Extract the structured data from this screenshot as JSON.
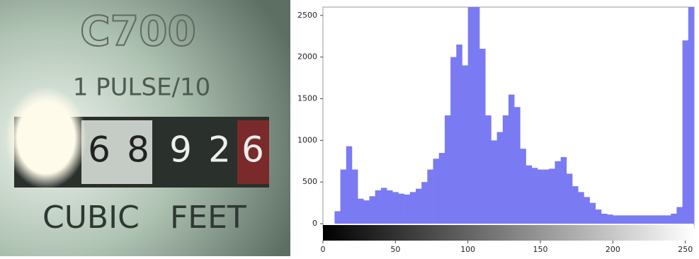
{
  "photo": {
    "model": "C700",
    "pulse": "1 PULSE/10",
    "digits": [
      "6",
      "8",
      "9",
      "2",
      "6"
    ],
    "unit_left": "CUBIC",
    "unit_right": "FEET"
  },
  "chart_data": {
    "type": "histogram",
    "color": "#7a7af2",
    "bins": [
      0,
      4,
      8,
      12,
      16,
      20,
      24,
      28,
      32,
      36,
      40,
      44,
      48,
      52,
      56,
      60,
      64,
      68,
      72,
      76,
      80,
      84,
      88,
      92,
      96,
      100,
      104,
      108,
      112,
      116,
      120,
      124,
      128,
      132,
      136,
      140,
      144,
      148,
      152,
      156,
      160,
      164,
      168,
      172,
      176,
      180,
      184,
      188,
      192,
      196,
      200,
      204,
      208,
      212,
      216,
      220,
      224,
      228,
      232,
      236,
      240,
      244,
      248,
      252,
      256
    ],
    "values": [
      0,
      0,
      150,
      650,
      930,
      650,
      300,
      280,
      330,
      400,
      430,
      400,
      380,
      360,
      350,
      380,
      420,
      500,
      650,
      780,
      850,
      1300,
      2000,
      2150,
      1900,
      2600,
      2600,
      2100,
      1300,
      1000,
      1100,
      1300,
      1550,
      1400,
      900,
      700,
      670,
      650,
      650,
      660,
      750,
      800,
      600,
      450,
      380,
      320,
      250,
      170,
      120,
      110,
      100,
      100,
      100,
      100,
      100,
      100,
      100,
      100,
      100,
      100,
      120,
      200,
      2200,
      2600
    ],
    "xlim": [
      0,
      256
    ],
    "ylim": [
      -50,
      2600
    ],
    "xticks": [
      0,
      50,
      100,
      150,
      200,
      250
    ],
    "yticks": [
      0,
      500,
      1000,
      1500,
      2000,
      2500
    ]
  }
}
